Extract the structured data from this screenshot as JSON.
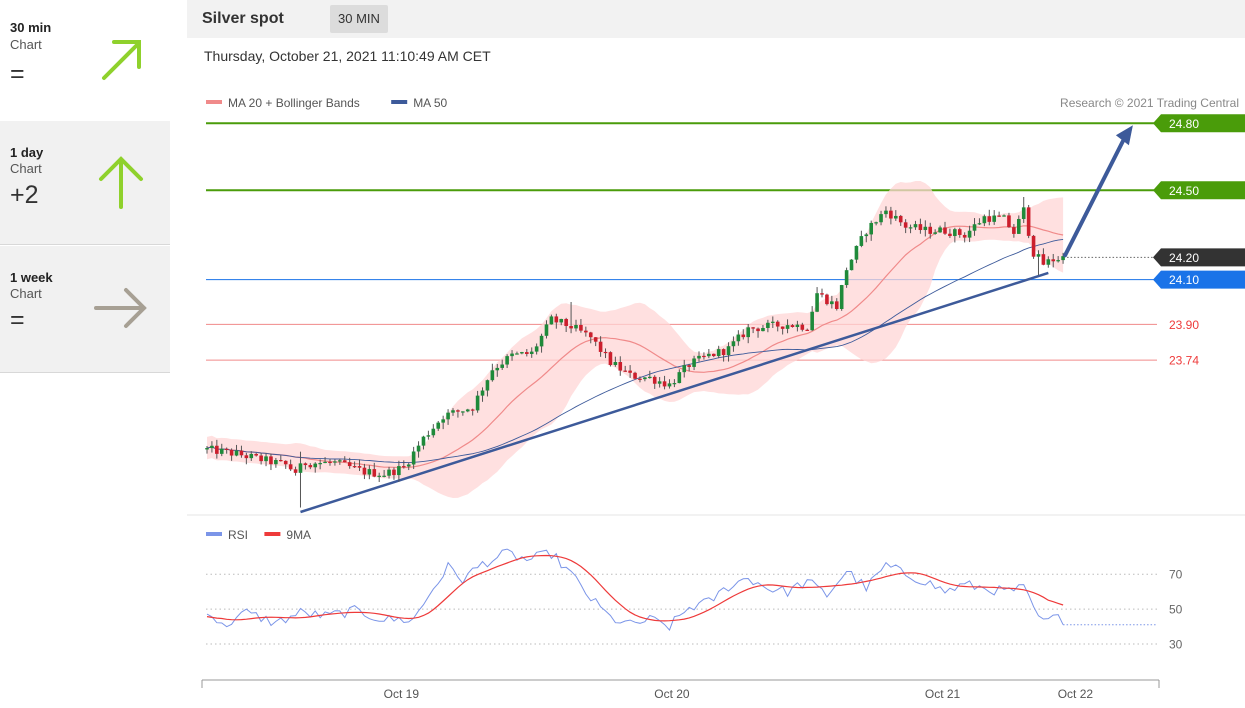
{
  "sidebar": {
    "cards": [
      {
        "period": "30 min",
        "sub": "Chart",
        "score": "=",
        "direction": "up-right",
        "color": "#8fd12c"
      },
      {
        "period": "1 day",
        "sub": "Chart",
        "score": "+2",
        "direction": "up",
        "color": "#8fd12c"
      },
      {
        "period": "1 week",
        "sub": "Chart",
        "score": "=",
        "direction": "right",
        "color": "#a7a094"
      }
    ]
  },
  "header": {
    "instrument": "Silver spot",
    "timeframe": "30 MIN",
    "timestamp": "Thursday, October 21, 2021 11:10:49 AM CET"
  },
  "colors": {
    "up_candle": "#1f8a3a",
    "down_candle": "#cc1f2d",
    "ma20": "#f08a8a",
    "ma50": "#3d5a9a",
    "band_fill": "#ffd6d6",
    "resistance": "#4a9c0a",
    "support_blue": "#1a73e8",
    "support_red": "#f08a8a",
    "trend": "#3d5a9a",
    "rsi": "#7b95e8",
    "rsi_ma": "#ee3a3a",
    "current": "#333333"
  },
  "chart_data": [
    {
      "type": "candlestick",
      "title": "Silver spot",
      "legend": [
        {
          "name": "MA 20 + Bollinger Bands",
          "color": "#f08a8a"
        },
        {
          "name": "MA 50",
          "color": "#3d5a9a"
        }
      ],
      "copyright": "Research © 2021 Trading Central",
      "legend_position": "top-left",
      "x_ticks": [
        "Oct 19",
        "Oct 20",
        "Oct 21",
        "Oct 22"
      ],
      "ylim": [
        23.06,
        24.94
      ],
      "levels": [
        {
          "value": 24.8,
          "label": "24.80",
          "kind": "resistance"
        },
        {
          "value": 24.5,
          "label": "24.50",
          "kind": "resistance"
        },
        {
          "value": 24.2,
          "label": "24.20",
          "kind": "current"
        },
        {
          "value": 24.1,
          "label": "24.10",
          "kind": "support"
        },
        {
          "value": 23.9,
          "label": "23.90",
          "kind": "support"
        },
        {
          "value": 23.74,
          "label": "23.74",
          "kind": "support"
        }
      ],
      "price_anchors": [
        {
          "bar": 0,
          "price": 23.34
        },
        {
          "bar": 6,
          "price": 23.32
        },
        {
          "bar": 12,
          "price": 23.29
        },
        {
          "bar": 16,
          "price": 23.27
        },
        {
          "bar": 18,
          "price": 23.24
        },
        {
          "bar": 20,
          "price": 23.28
        },
        {
          "bar": 26,
          "price": 23.28
        },
        {
          "bar": 32,
          "price": 23.24
        },
        {
          "bar": 36,
          "price": 23.23
        },
        {
          "bar": 40,
          "price": 23.26
        },
        {
          "bar": 44,
          "price": 23.39
        },
        {
          "bar": 48,
          "price": 23.49
        },
        {
          "bar": 54,
          "price": 23.53
        },
        {
          "bar": 58,
          "price": 23.7
        },
        {
          "bar": 62,
          "price": 23.76
        },
        {
          "bar": 66,
          "price": 23.77
        },
        {
          "bar": 70,
          "price": 23.92
        },
        {
          "bar": 74,
          "price": 23.89
        },
        {
          "bar": 78,
          "price": 23.84
        },
        {
          "bar": 82,
          "price": 23.73
        },
        {
          "bar": 86,
          "price": 23.67
        },
        {
          "bar": 90,
          "price": 23.66
        },
        {
          "bar": 94,
          "price": 23.63
        },
        {
          "bar": 98,
          "price": 23.72
        },
        {
          "bar": 102,
          "price": 23.76
        },
        {
          "bar": 106,
          "price": 23.79
        },
        {
          "bar": 110,
          "price": 23.88
        },
        {
          "bar": 114,
          "price": 23.89
        },
        {
          "bar": 118,
          "price": 23.9
        },
        {
          "bar": 122,
          "price": 23.89
        },
        {
          "bar": 124,
          "price": 24.04
        },
        {
          "bar": 128,
          "price": 23.98
        },
        {
          "bar": 130,
          "price": 24.15
        },
        {
          "bar": 134,
          "price": 24.32
        },
        {
          "bar": 138,
          "price": 24.41
        },
        {
          "bar": 142,
          "price": 24.34
        },
        {
          "bar": 146,
          "price": 24.32
        },
        {
          "bar": 150,
          "price": 24.32
        },
        {
          "bar": 154,
          "price": 24.3
        },
        {
          "bar": 158,
          "price": 24.38
        },
        {
          "bar": 162,
          "price": 24.37
        },
        {
          "bar": 164,
          "price": 24.31
        },
        {
          "bar": 166,
          "price": 24.41
        },
        {
          "bar": 168,
          "price": 24.22
        },
        {
          "bar": 170,
          "price": 24.17
        },
        {
          "bar": 172,
          "price": 24.19
        },
        {
          "bar": 174,
          "price": 24.2
        }
      ],
      "trendlines": [
        {
          "from": {
            "bar": 19,
            "price": 23.06
          },
          "to": {
            "bar": 171,
            "price": 24.13
          }
        }
      ],
      "projection": {
        "from": {
          "bar": 174,
          "price": 24.2
        },
        "to": {
          "bar": 189,
          "price": 24.8
        }
      }
    },
    {
      "type": "line",
      "legend": [
        {
          "name": "RSI",
          "color": "#7b95e8"
        },
        {
          "name": "9MA",
          "color": "#ee3a3a"
        }
      ],
      "ylim": [
        18,
        85
      ],
      "y_ticks": [
        70,
        50,
        30
      ],
      "rsi_anchors": [
        {
          "bar": 0,
          "v": 50
        },
        {
          "bar": 3,
          "v": 40
        },
        {
          "bar": 8,
          "v": 48
        },
        {
          "bar": 14,
          "v": 42
        },
        {
          "bar": 19,
          "v": 48
        },
        {
          "bar": 24,
          "v": 46
        },
        {
          "bar": 30,
          "v": 49
        },
        {
          "bar": 36,
          "v": 44
        },
        {
          "bar": 42,
          "v": 44
        },
        {
          "bar": 46,
          "v": 62
        },
        {
          "bar": 49,
          "v": 74
        },
        {
          "bar": 52,
          "v": 67
        },
        {
          "bar": 56,
          "v": 76
        },
        {
          "bar": 61,
          "v": 82
        },
        {
          "bar": 65,
          "v": 78
        },
        {
          "bar": 70,
          "v": 82
        },
        {
          "bar": 74,
          "v": 70
        },
        {
          "bar": 78,
          "v": 56
        },
        {
          "bar": 82,
          "v": 45
        },
        {
          "bar": 86,
          "v": 41
        },
        {
          "bar": 90,
          "v": 44
        },
        {
          "bar": 94,
          "v": 40
        },
        {
          "bar": 98,
          "v": 51
        },
        {
          "bar": 102,
          "v": 54
        },
        {
          "bar": 106,
          "v": 63
        },
        {
          "bar": 110,
          "v": 68
        },
        {
          "bar": 114,
          "v": 62
        },
        {
          "bar": 118,
          "v": 60
        },
        {
          "bar": 122,
          "v": 66
        },
        {
          "bar": 126,
          "v": 58
        },
        {
          "bar": 130,
          "v": 72
        },
        {
          "bar": 134,
          "v": 62
        },
        {
          "bar": 138,
          "v": 75
        },
        {
          "bar": 142,
          "v": 70
        },
        {
          "bar": 146,
          "v": 66
        },
        {
          "bar": 150,
          "v": 60
        },
        {
          "bar": 154,
          "v": 64
        },
        {
          "bar": 158,
          "v": 62
        },
        {
          "bar": 162,
          "v": 60
        },
        {
          "bar": 166,
          "v": 62
        },
        {
          "bar": 168,
          "v": 50
        },
        {
          "bar": 170,
          "v": 42
        },
        {
          "bar": 172,
          "v": 45
        },
        {
          "bar": 174,
          "v": 44
        }
      ]
    }
  ]
}
